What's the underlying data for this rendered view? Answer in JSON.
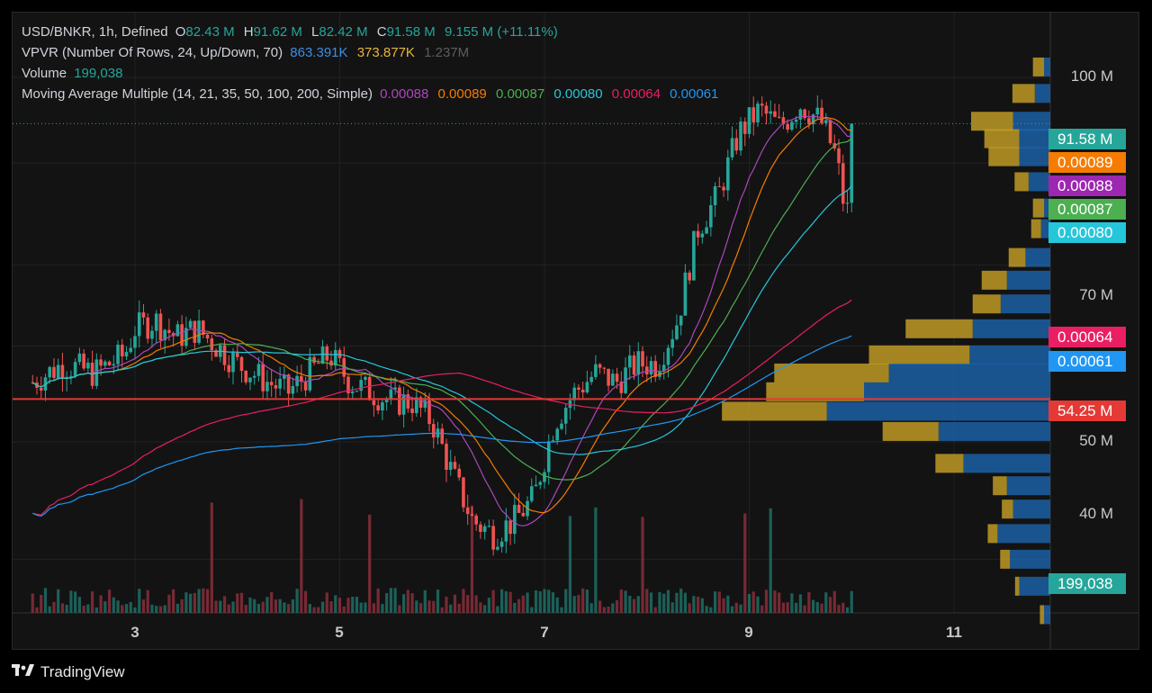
{
  "legend": {
    "row1": {
      "label": "USD/BNKR, 1h, Defined",
      "o": "82.43 M",
      "h": "91.62 M",
      "l": "82.42 M",
      "c": "91.58 M",
      "chg": "9.155 M (+11.11%)"
    },
    "row2": {
      "label": "VPVR (Number Of Rows, 24, Up/Down, 70)",
      "v1": "863.391K",
      "v2": "373.877K",
      "v3": "1.237M"
    },
    "row3": {
      "label": "Volume",
      "v": "199,038"
    },
    "row4": {
      "label": "Moving Average Multiple (14, 21, 35, 50, 100, 200, Simple)",
      "m1": "0.00088",
      "m2": "0.00089",
      "m3": "0.00087",
      "m4": "0.00080",
      "m5": "0.00064",
      "m6": "0.00061"
    }
  },
  "axis": {
    "y_ticks": [
      "100 M",
      "70 M",
      "50 M",
      "40 M"
    ],
    "x_ticks": [
      "3",
      "5",
      "7",
      "9",
      "11"
    ]
  },
  "tags": [
    {
      "text": "91.58 M",
      "color": "#26a69a"
    },
    {
      "text": "0.00089",
      "color": "#f57c00"
    },
    {
      "text": "0.00088",
      "color": "#9c27b0"
    },
    {
      "text": "0.00087",
      "color": "#4caf50"
    },
    {
      "text": "0.00080",
      "color": "#26c6da"
    },
    {
      "text": "0.00064",
      "color": "#e91e63"
    },
    {
      "text": "0.00061",
      "color": "#2196f3"
    },
    {
      "text": "54.25 M",
      "color": "#e53935"
    },
    {
      "text": "199,038",
      "color": "#26a69a"
    }
  ],
  "brand": {
    "name": "TradingView"
  },
  "chart_data": {
    "type": "candlestick",
    "symbol": "USD/BNKR",
    "interval": "1h",
    "y_scale": "log",
    "ylim": [
      34,
      112
    ],
    "last_price": 91.58,
    "horizontal_line": 54.25,
    "x_day_labels": [
      3,
      5,
      7,
      9,
      11
    ],
    "close_path": [
      [
        2.0,
        56
      ],
      [
        2.3,
        58
      ],
      [
        2.6,
        57
      ],
      [
        2.9,
        59
      ],
      [
        3.0,
        62
      ],
      [
        3.2,
        63
      ],
      [
        3.4,
        61
      ],
      [
        3.6,
        62
      ],
      [
        3.8,
        60
      ],
      [
        4.0,
        58
      ],
      [
        4.3,
        56
      ],
      [
        4.5,
        55
      ],
      [
        4.7,
        57
      ],
      [
        4.9,
        59
      ],
      [
        5.1,
        56
      ],
      [
        5.3,
        55
      ],
      [
        5.5,
        54
      ],
      [
        5.7,
        54
      ],
      [
        5.9,
        52
      ],
      [
        6.1,
        47
      ],
      [
        6.3,
        43
      ],
      [
        6.5,
        42
      ],
      [
        6.7,
        43
      ],
      [
        6.9,
        45
      ],
      [
        7.1,
        52
      ],
      [
        7.3,
        55
      ],
      [
        7.5,
        57
      ],
      [
        7.7,
        56
      ],
      [
        7.9,
        58
      ],
      [
        8.1,
        58
      ],
      [
        8.3,
        63
      ],
      [
        8.5,
        75
      ],
      [
        8.7,
        80
      ],
      [
        8.9,
        90
      ],
      [
        9.1,
        94
      ],
      [
        9.3,
        91
      ],
      [
        9.5,
        95
      ],
      [
        9.7,
        92
      ],
      [
        9.85,
        86
      ],
      [
        9.95,
        76
      ],
      [
        10.03,
        91.58
      ]
    ],
    "vpvr_rows": [
      {
        "price": 102,
        "up": 0.08,
        "down": 0.02
      },
      {
        "price": 97,
        "up": 0.16,
        "down": 0.05
      },
      {
        "price": 92,
        "up": 0.3,
        "down": 0.12
      },
      {
        "price": 89,
        "up": 0.25,
        "down": 0.1
      },
      {
        "price": 86,
        "up": 0.22,
        "down": 0.1
      },
      {
        "price": 82,
        "up": 0.1,
        "down": 0.07
      },
      {
        "price": 78,
        "up": 0.08,
        "down": 0.02
      },
      {
        "price": 75,
        "up": 0.07,
        "down": 0.03
      },
      {
        "price": 71,
        "up": 0.12,
        "down": 0.08
      },
      {
        "price": 68,
        "up": 0.18,
        "down": 0.14
      },
      {
        "price": 65,
        "up": 0.2,
        "down": 0.16
      },
      {
        "price": 62,
        "up": 0.48,
        "down": 0.25
      },
      {
        "price": 59,
        "up": 0.72,
        "down": 0.26
      },
      {
        "price": 57,
        "up": 0.82,
        "down": 0.52
      },
      {
        "price": 55,
        "up": 0.7,
        "down": 0.6
      },
      {
        "price": 53,
        "up": 0.75,
        "down": 0.72
      },
      {
        "price": 51,
        "up": 0.4,
        "down": 0.36
      },
      {
        "price": 48,
        "up": 0.2,
        "down": 0.28
      },
      {
        "price": 46,
        "up": 0.1,
        "down": 0.14
      },
      {
        "price": 44,
        "up": 0.08,
        "down": 0.12
      },
      {
        "price": 42,
        "up": 0.07,
        "down": 0.17
      },
      {
        "price": 40,
        "up": 0.07,
        "down": 0.13
      },
      {
        "price": 38,
        "up": 0.03,
        "down": 0.1
      },
      {
        "price": 36,
        "up": 0.03,
        "down": 0.02
      }
    ]
  }
}
